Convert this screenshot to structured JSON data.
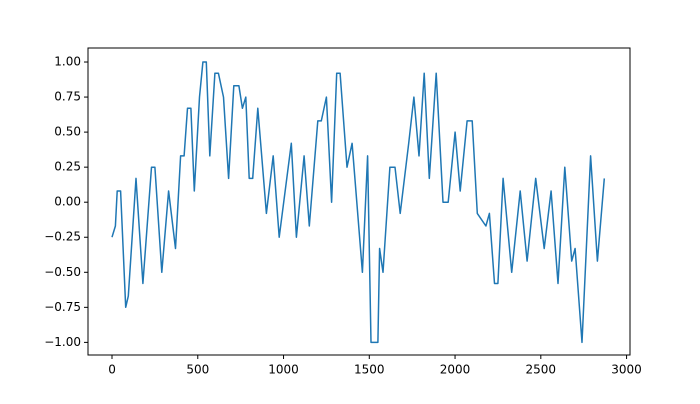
{
  "chart_data": {
    "type": "line",
    "color": "#1f77b4",
    "x": [
      0,
      20,
      30,
      50,
      80,
      95,
      140,
      180,
      230,
      250,
      290,
      330,
      370,
      400,
      420,
      440,
      460,
      480,
      510,
      530,
      550,
      570,
      600,
      620,
      650,
      680,
      710,
      740,
      760,
      780,
      800,
      820,
      850,
      900,
      940,
      975,
      1045,
      1075,
      1120,
      1150,
      1200,
      1220,
      1250,
      1280,
      1310,
      1330,
      1370,
      1400,
      1460,
      1490,
      1510,
      1550,
      1560,
      1580,
      1620,
      1650,
      1680,
      1730,
      1760,
      1790,
      1820,
      1850,
      1890,
      1930,
      1960,
      2000,
      2030,
      2070,
      2100,
      2130,
      2180,
      2200,
      2230,
      2250,
      2280,
      2330,
      2380,
      2420,
      2470,
      2520,
      2560,
      2600,
      2640,
      2680,
      2700,
      2740,
      2790,
      2830,
      2870
    ],
    "values": [
      -0.25,
      -0.17,
      0.08,
      0.08,
      -0.75,
      -0.67,
      0.17,
      -0.58,
      0.25,
      0.25,
      -0.5,
      0.08,
      -0.33,
      0.33,
      0.33,
      0.67,
      0.67,
      0.08,
      0.75,
      1.0,
      1.0,
      0.33,
      0.92,
      0.92,
      0.75,
      0.17,
      0.83,
      0.83,
      0.67,
      0.75,
      0.17,
      0.17,
      0.67,
      -0.08,
      0.33,
      -0.25,
      0.42,
      -0.25,
      0.33,
      -0.17,
      0.58,
      0.58,
      0.75,
      0.0,
      0.92,
      0.92,
      0.25,
      0.42,
      -0.5,
      0.33,
      -1.0,
      -1.0,
      -0.33,
      -0.5,
      0.25,
      0.25,
      -0.08,
      0.42,
      0.75,
      0.33,
      0.92,
      0.17,
      0.92,
      0.0,
      0.0,
      0.5,
      0.08,
      0.58,
      0.58,
      -0.08,
      -0.17,
      -0.08,
      -0.58,
      -0.58,
      0.17,
      -0.5,
      0.08,
      -0.42,
      0.17,
      -0.33,
      0.08,
      -0.58,
      0.25,
      -0.42,
      -0.33,
      -1.0,
      0.33,
      -0.42,
      0.17
    ],
    "xlim": [
      -140,
      3020
    ],
    "xticks": [
      0,
      500,
      1000,
      1500,
      2000,
      2500,
      3000
    ],
    "ylim": [
      -1.09,
      1.1
    ],
    "yticks": [
      {
        "value": -1,
        "label": "−1.00"
      },
      {
        "value": -0.75,
        "label": "−0.75"
      },
      {
        "value": -0.5,
        "label": "−0.50"
      },
      {
        "value": -0.25,
        "label": "−0.25"
      },
      {
        "value": 0,
        "label": "0.00"
      },
      {
        "value": 0.25,
        "label": "0.25"
      },
      {
        "value": 0.5,
        "label": "0.50"
      },
      {
        "value": 0.75,
        "label": "0.75"
      },
      {
        "value": 1,
        "label": "1.00"
      }
    ]
  }
}
